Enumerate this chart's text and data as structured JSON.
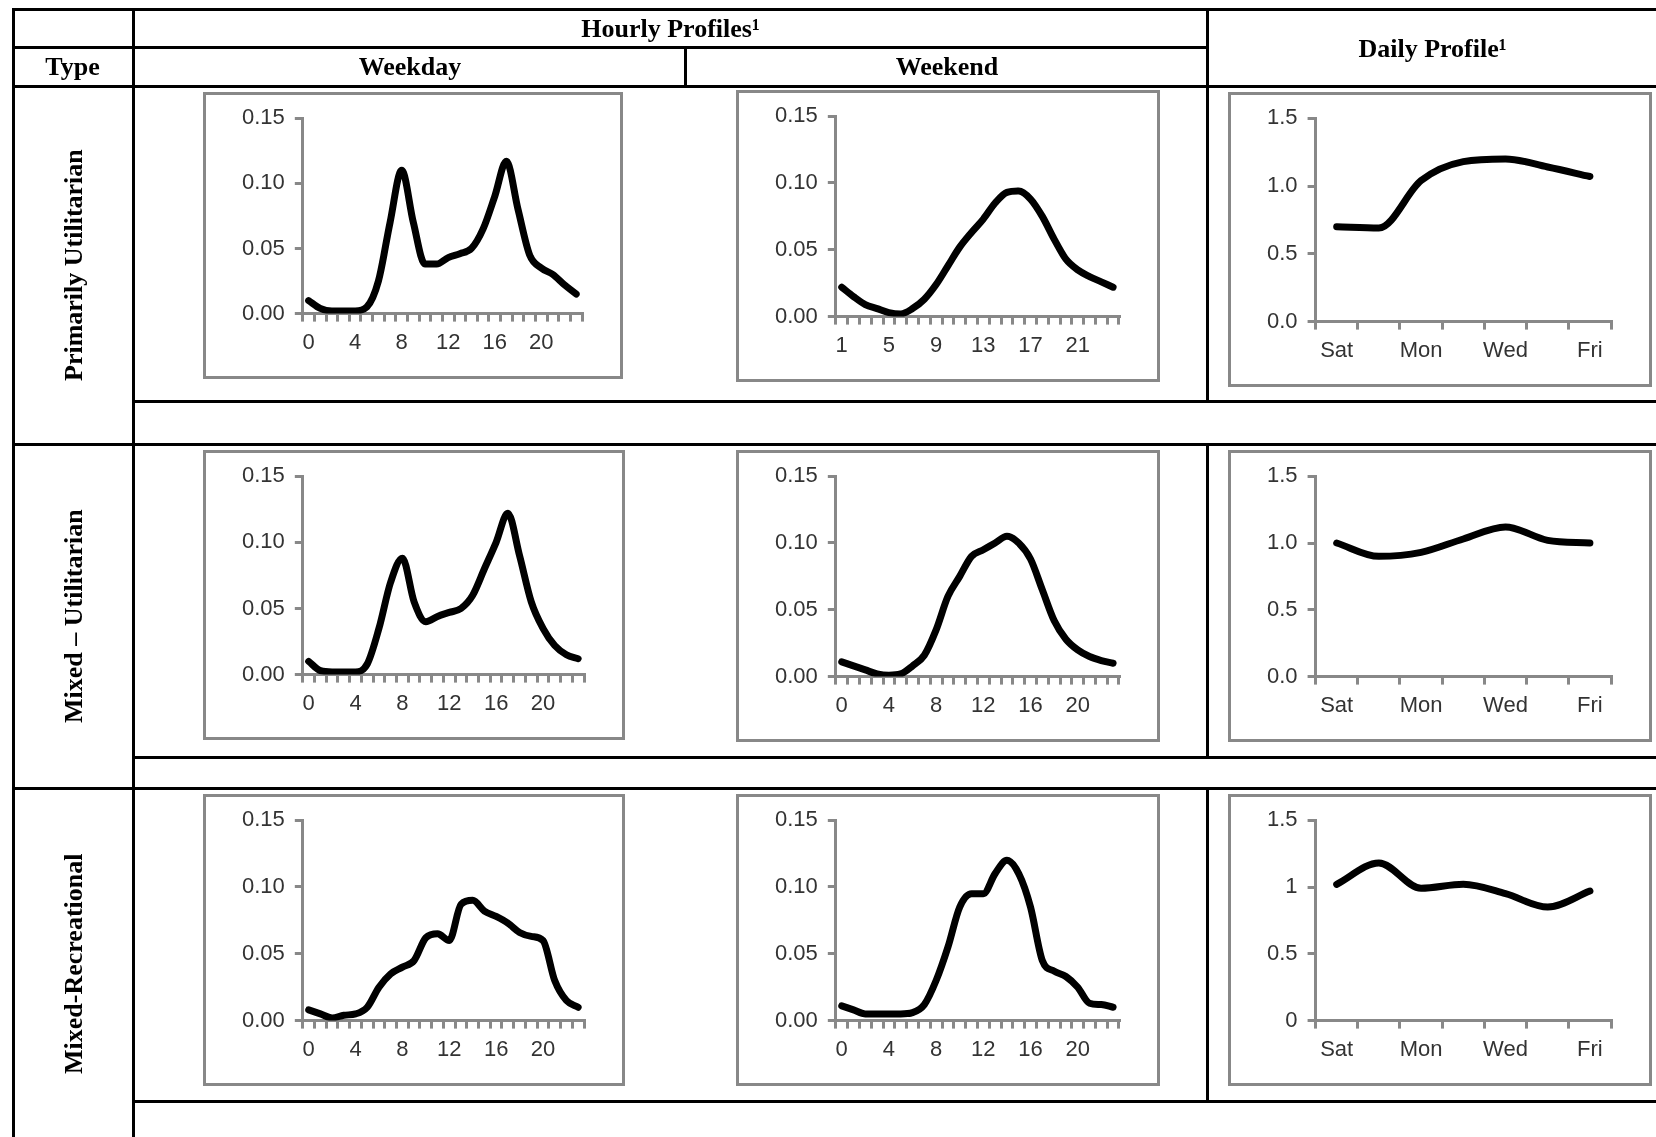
{
  "chart_data": [
    {
      "type": "line",
      "annotations": [
        "Type",
        "Hourly Profiles¹",
        "Weekday",
        "Primarily Utilitarian"
      ],
      "categories": [
        "0",
        null,
        null,
        null,
        "4",
        null,
        null,
        null,
        "8",
        null,
        null,
        null,
        "12",
        null,
        null,
        null,
        "16",
        null,
        null,
        null,
        "20",
        null,
        null,
        null
      ],
      "values": [
        0.01,
        0.004,
        0.002,
        0.002,
        0.002,
        0.005,
        0.025,
        0.07,
        0.11,
        0.07,
        0.038,
        0.038,
        0.043,
        0.046,
        0.05,
        0.065,
        0.09,
        0.117,
        0.08,
        0.045,
        0.035,
        0.03,
        0.022,
        0.015
      ],
      "color": "#000000",
      "marker": "none",
      "ylim": [
        0,
        0.15
      ],
      "yticks": [
        {
          "value": 0,
          "label": "0.00"
        },
        {
          "value": 0.05,
          "label": "0.05"
        },
        {
          "value": 0.1,
          "label": "0.10"
        },
        {
          "value": 0.15,
          "label": "0.15"
        }
      ]
    },
    {
      "type": "line",
      "annotations": [
        "Weekend"
      ],
      "categories": [
        "1",
        null,
        null,
        null,
        "5",
        null,
        null,
        null,
        "9",
        null,
        null,
        null,
        "13",
        null,
        null,
        null,
        "17",
        null,
        null,
        null,
        "21",
        null,
        null,
        null
      ],
      "values": [
        0.022,
        0.015,
        0.009,
        0.006,
        0.003,
        0.002,
        0.006,
        0.013,
        0.024,
        0.038,
        0.052,
        0.063,
        0.073,
        0.085,
        0.093,
        0.094,
        0.088,
        0.075,
        0.058,
        0.043,
        0.035,
        0.03,
        0.026,
        0.022
      ],
      "color": "#000000",
      "marker": "none",
      "ylim": [
        0,
        0.15
      ],
      "yticks": [
        {
          "value": 0,
          "label": "0.00"
        },
        {
          "value": 0.05,
          "label": "0.05"
        },
        {
          "value": 0.1,
          "label": "0.10"
        },
        {
          "value": 0.15,
          "label": "0.15"
        }
      ]
    },
    {
      "type": "line",
      "annotations": [
        "Daily Profile¹"
      ],
      "categories": [
        "Sat",
        null,
        "Mon",
        null,
        "Wed",
        null,
        "Fri"
      ],
      "values": [
        0.7,
        0.69,
        1.04,
        1.18,
        1.2,
        1.14,
        1.07
      ],
      "color": "#000000",
      "marker": "none",
      "ylim": [
        0,
        1.5
      ],
      "yticks": [
        {
          "value": 0,
          "label": "0.0"
        },
        {
          "value": 0.5,
          "label": "0.5"
        },
        {
          "value": 1,
          "label": "1.0"
        },
        {
          "value": 1.5,
          "label": "1.5"
        }
      ]
    },
    {
      "type": "line",
      "annotations": [
        "Mixed – Utilitarian"
      ],
      "categories": [
        "0",
        null,
        null,
        null,
        "4",
        null,
        null,
        null,
        "8",
        null,
        null,
        null,
        "12",
        null,
        null,
        null,
        "16",
        null,
        null,
        null,
        "20",
        null,
        null,
        null
      ],
      "values": [
        0.01,
        0.003,
        0.002,
        0.002,
        0.002,
        0.008,
        0.035,
        0.07,
        0.088,
        0.055,
        0.04,
        0.044,
        0.047,
        0.05,
        0.06,
        0.08,
        0.1,
        0.122,
        0.09,
        0.055,
        0.035,
        0.022,
        0.015,
        0.012
      ],
      "color": "#000000",
      "marker": "none",
      "ylim": [
        0,
        0.15
      ],
      "yticks": [
        {
          "value": 0,
          "label": "0.00"
        },
        {
          "value": 0.05,
          "label": "0.05"
        },
        {
          "value": 0.1,
          "label": "0.10"
        },
        {
          "value": 0.15,
          "label": "0.15"
        }
      ]
    },
    {
      "type": "line",
      "categories": [
        "0",
        null,
        null,
        null,
        "4",
        null,
        null,
        null,
        "8",
        null,
        null,
        null,
        "12",
        null,
        null,
        null,
        "16",
        null,
        null,
        null,
        "20",
        null,
        null,
        null
      ],
      "values": [
        0.011,
        0.008,
        0.005,
        0.002,
        0.001,
        0.002,
        0.008,
        0.016,
        0.035,
        0.06,
        0.075,
        0.09,
        0.095,
        0.1,
        0.105,
        0.1,
        0.088,
        0.065,
        0.042,
        0.028,
        0.02,
        0.015,
        0.012,
        0.01
      ],
      "color": "#000000",
      "marker": "none",
      "ylim": [
        0,
        0.15
      ],
      "yticks": [
        {
          "value": 0,
          "label": "0.00"
        },
        {
          "value": 0.05,
          "label": "0.05"
        },
        {
          "value": 0.1,
          "label": "0.10"
        },
        {
          "value": 0.15,
          "label": "0.15"
        }
      ]
    },
    {
      "type": "line",
      "categories": [
        "Sat",
        null,
        "Mon",
        null,
        "Wed",
        null,
        "Fri"
      ],
      "values": [
        1.0,
        0.9,
        0.93,
        1.03,
        1.12,
        1.02,
        1.0
      ],
      "color": "#000000",
      "marker": "none",
      "ylim": [
        0,
        1.5
      ],
      "yticks": [
        {
          "value": 0,
          "label": "0.0"
        },
        {
          "value": 0.5,
          "label": "0.5"
        },
        {
          "value": 1,
          "label": "1.0"
        },
        {
          "value": 1.5,
          "label": "1.5"
        }
      ]
    },
    {
      "type": "line",
      "annotations": [
        "Mixed-Recreational"
      ],
      "categories": [
        "0",
        null,
        null,
        null,
        "4",
        null,
        null,
        null,
        "8",
        null,
        null,
        null,
        "12",
        null,
        null,
        null,
        "16",
        null,
        null,
        null,
        "20",
        null,
        null,
        null
      ],
      "values": [
        0.008,
        0.005,
        0.002,
        0.004,
        0.005,
        0.01,
        0.025,
        0.035,
        0.04,
        0.045,
        0.062,
        0.065,
        0.06,
        0.087,
        0.09,
        0.082,
        0.078,
        0.073,
        0.066,
        0.063,
        0.06,
        0.03,
        0.015,
        0.01
      ],
      "color": "#000000",
      "marker": "none",
      "ylim": [
        0,
        0.15
      ],
      "yticks": [
        {
          "value": 0,
          "label": "0.00"
        },
        {
          "value": 0.05,
          "label": "0.05"
        },
        {
          "value": 0.1,
          "label": "0.10"
        },
        {
          "value": 0.15,
          "label": "0.15"
        }
      ]
    },
    {
      "type": "line",
      "categories": [
        "0",
        null,
        null,
        null,
        "4",
        null,
        null,
        null,
        "8",
        null,
        null,
        null,
        "12",
        null,
        null,
        null,
        "16",
        null,
        null,
        null,
        "20",
        null,
        null,
        null
      ],
      "values": [
        0.011,
        0.008,
        0.005,
        0.005,
        0.005,
        0.005,
        0.006,
        0.012,
        0.03,
        0.055,
        0.085,
        0.095,
        0.095,
        0.11,
        0.12,
        0.11,
        0.085,
        0.045,
        0.037,
        0.033,
        0.025,
        0.013,
        0.012,
        0.01
      ],
      "color": "#000000",
      "marker": "none",
      "ylim": [
        0,
        0.15
      ],
      "yticks": [
        {
          "value": 0,
          "label": "0.00"
        },
        {
          "value": 0.05,
          "label": "0.05"
        },
        {
          "value": 0.1,
          "label": "0.10"
        },
        {
          "value": 0.15,
          "label": "0.15"
        }
      ]
    },
    {
      "type": "line",
      "categories": [
        "Sat",
        null,
        "Mon",
        null,
        "Wed",
        null,
        "Fri"
      ],
      "values": [
        1.02,
        1.18,
        0.99,
        1.02,
        0.95,
        0.85,
        0.97
      ],
      "color": "#000000",
      "marker": "none",
      "ylim": [
        0,
        1.5
      ],
      "yticks": [
        0,
        0.5,
        1,
        1.5
      ]
    }
  ]
}
